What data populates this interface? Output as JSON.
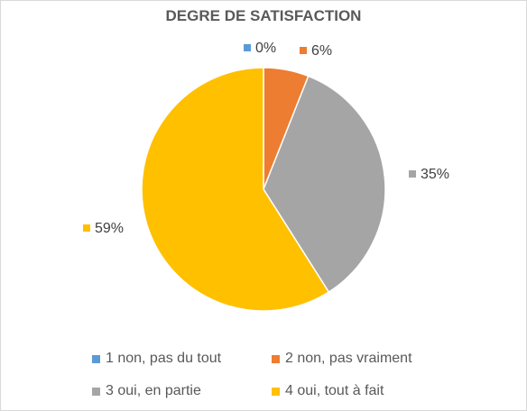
{
  "chart_data": {
    "type": "pie",
    "title": "DEGRE DE SATISFACTION",
    "categories": [
      "1 non, pas du tout",
      "2 non, pas vraiment",
      "3 oui, en partie",
      "4 oui, tout à fait"
    ],
    "values": [
      0,
      6,
      35,
      59
    ],
    "labels": [
      "0%",
      "6%",
      "35%",
      "59%"
    ],
    "colors": [
      "#5b9bd5",
      "#ed7d31",
      "#a5a5a5",
      "#ffc000"
    ],
    "legend_position": "bottom",
    "start_angle": "top, clockwise"
  }
}
